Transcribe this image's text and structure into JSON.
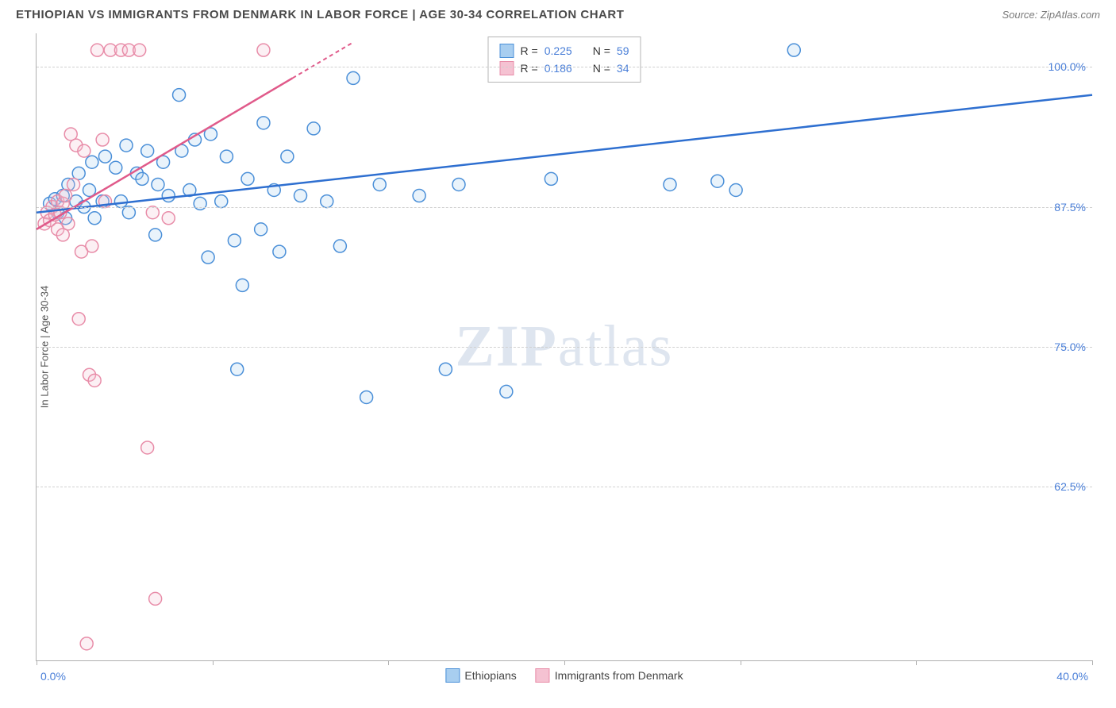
{
  "title": "ETHIOPIAN VS IMMIGRANTS FROM DENMARK IN LABOR FORCE | AGE 30-34 CORRELATION CHART",
  "source": "Source: ZipAtlas.com",
  "watermark": "ZIPatlas",
  "chart": {
    "type": "scatter",
    "y_axis_label": "In Labor Force | Age 30-34",
    "xlim": [
      0,
      40
    ],
    "ylim": [
      47,
      103
    ],
    "x_ticks": [
      0,
      6.67,
      13.33,
      20,
      26.67,
      33.33,
      40
    ],
    "x_tick_labels_shown": {
      "0": "0.0%",
      "40": "40.0%"
    },
    "y_gridlines": [
      62.5,
      75.0,
      87.5,
      100.0
    ],
    "y_tick_labels": [
      "62.5%",
      "75.0%",
      "87.5%",
      "100.0%"
    ],
    "background_color": "#ffffff",
    "grid_color": "#d0d0d0",
    "axis_color": "#b0b0b0",
    "marker_radius": 8,
    "marker_stroke_width": 1.5,
    "marker_fill_opacity": 0.25,
    "line_width": 2,
    "series": [
      {
        "name": "Ethiopians",
        "color_stroke": "#4a8fd8",
        "color_fill": "#a8cef0",
        "R": 0.225,
        "N": 59,
        "trend": {
          "x1": 0,
          "y1": 87.0,
          "x2": 40,
          "y2": 97.5
        },
        "points": [
          [
            0.5,
            87.8
          ],
          [
            0.7,
            88.2
          ],
          [
            0.8,
            87.0
          ],
          [
            1.0,
            88.5
          ],
          [
            1.1,
            86.5
          ],
          [
            1.2,
            89.5
          ],
          [
            1.5,
            88.0
          ],
          [
            1.6,
            90.5
          ],
          [
            1.8,
            87.5
          ],
          [
            2.0,
            89.0
          ],
          [
            2.1,
            91.5
          ],
          [
            2.2,
            86.5
          ],
          [
            2.5,
            88.0
          ],
          [
            2.6,
            92.0
          ],
          [
            3.0,
            91.0
          ],
          [
            3.2,
            88.0
          ],
          [
            3.4,
            93.0
          ],
          [
            3.5,
            87.0
          ],
          [
            3.8,
            90.5
          ],
          [
            4.0,
            90.0
          ],
          [
            4.2,
            92.5
          ],
          [
            4.5,
            85.0
          ],
          [
            4.8,
            91.5
          ],
          [
            5.0,
            88.5
          ],
          [
            5.4,
            97.5
          ],
          [
            5.5,
            92.5
          ],
          [
            5.8,
            89.0
          ],
          [
            6.0,
            93.5
          ],
          [
            6.5,
            83.0
          ],
          [
            6.6,
            94.0
          ],
          [
            7.0,
            88.0
          ],
          [
            7.2,
            92.0
          ],
          [
            7.5,
            84.5
          ],
          [
            7.6,
            73.0
          ],
          [
            7.8,
            80.5
          ],
          [
            8.0,
            90.0
          ],
          [
            8.5,
            85.5
          ],
          [
            8.6,
            95.0
          ],
          [
            9.0,
            89.0
          ],
          [
            9.2,
            83.5
          ],
          [
            9.5,
            92.0
          ],
          [
            10.0,
            88.5
          ],
          [
            10.5,
            94.5
          ],
          [
            11.0,
            88.0
          ],
          [
            11.5,
            84.0
          ],
          [
            12.0,
            99.0
          ],
          [
            12.5,
            70.5
          ],
          [
            13.0,
            89.5
          ],
          [
            14.5,
            88.5
          ],
          [
            15.5,
            73.0
          ],
          [
            16.0,
            89.5
          ],
          [
            17.8,
            71.0
          ],
          [
            19.5,
            90.0
          ],
          [
            24.0,
            89.5
          ],
          [
            25.8,
            89.8
          ],
          [
            26.5,
            89.0
          ],
          [
            28.7,
            101.5
          ],
          [
            6.2,
            87.8
          ],
          [
            4.6,
            89.5
          ]
        ]
      },
      {
        "name": "Immigrants from Denmark",
        "color_stroke": "#e88ca8",
        "color_fill": "#f5c2d2",
        "R": 0.186,
        "N": 34,
        "trend_solid": {
          "x1": 0,
          "y1": 85.5,
          "x2": 9.7,
          "y2": 99.0
        },
        "trend_dashed": {
          "x1": 9.7,
          "y1": 99.0,
          "x2": 12.0,
          "y2": 102.2
        },
        "points": [
          [
            0.3,
            86.0
          ],
          [
            0.4,
            87.0
          ],
          [
            0.5,
            86.3
          ],
          [
            0.6,
            87.5
          ],
          [
            0.7,
            86.8
          ],
          [
            0.8,
            88.0
          ],
          [
            0.8,
            85.5
          ],
          [
            0.9,
            87.0
          ],
          [
            1.0,
            87.8
          ],
          [
            1.0,
            85.0
          ],
          [
            1.1,
            88.5
          ],
          [
            1.2,
            86.0
          ],
          [
            1.3,
            94.0
          ],
          [
            1.4,
            89.5
          ],
          [
            1.5,
            93.0
          ],
          [
            1.6,
            77.5
          ],
          [
            1.7,
            83.5
          ],
          [
            1.8,
            92.5
          ],
          [
            2.0,
            72.5
          ],
          [
            2.1,
            84.0
          ],
          [
            2.2,
            72.0
          ],
          [
            2.3,
            101.5
          ],
          [
            2.5,
            93.5
          ],
          [
            2.6,
            88.0
          ],
          [
            2.8,
            101.5
          ],
          [
            3.2,
            101.5
          ],
          [
            3.5,
            101.5
          ],
          [
            3.9,
            101.5
          ],
          [
            4.2,
            66.0
          ],
          [
            4.4,
            87.0
          ],
          [
            4.5,
            52.5
          ],
          [
            5.0,
            86.5
          ],
          [
            8.6,
            101.5
          ],
          [
            1.9,
            48.5
          ]
        ]
      }
    ],
    "legend_box": {
      "rows": [
        {
          "swatch_fill": "#a8cef0",
          "swatch_stroke": "#4a8fd8",
          "r_label": "R =",
          "r_value": "0.225",
          "n_label": "N =",
          "n_value": "59"
        },
        {
          "swatch_fill": "#f5c2d2",
          "swatch_stroke": "#e88ca8",
          "r_label": "R =",
          "r_value": "0.186",
          "n_label": "N =",
          "n_value": "34"
        }
      ]
    },
    "bottom_legend": [
      {
        "swatch_fill": "#a8cef0",
        "swatch_stroke": "#4a8fd8",
        "label": "Ethiopians"
      },
      {
        "swatch_fill": "#f5c2d2",
        "swatch_stroke": "#e88ca8",
        "label": "Immigrants from Denmark"
      }
    ]
  }
}
